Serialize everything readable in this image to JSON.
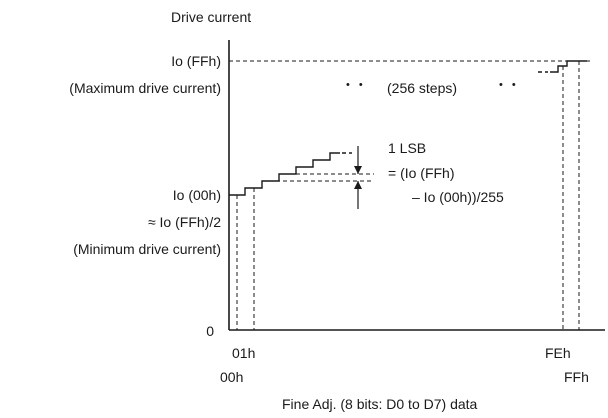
{
  "diagram": {
    "y_axis_title": "Drive current",
    "x_axis_title": "Fine Adj. (8 bits: D0 to D7) data",
    "y_labels": {
      "io_ffh": "Io (FFh)",
      "max_note": "(Maximum drive current)",
      "io_00h": "Io (00h)",
      "approx": "≈ Io (FFh)/2",
      "min_note": "(Minimum drive current)",
      "zero": "0"
    },
    "x_labels": {
      "x01h": "01h",
      "x00h": "00h",
      "xFEh": "FEh",
      "xFFh": "FFh"
    },
    "steps_note": "(256 steps)",
    "ellipsis": "• •",
    "lsb": {
      "line1": "1 LSB",
      "line2": "= (Io (FFh)",
      "line3": "– Io (00h))/255"
    }
  }
}
